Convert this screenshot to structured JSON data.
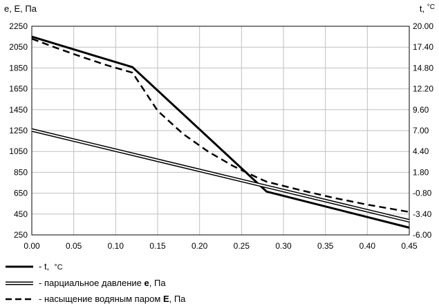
{
  "chart_data": {
    "type": "line",
    "title": "",
    "ylabel_left": "e, E, Па",
    "ylabel_right_prefix": "t, ",
    "ylabel_right_unit": "°C",
    "xlabel": "",
    "x_ticks": [
      "0.00",
      "0.05",
      "0.10",
      "0.15",
      "0.20",
      "0.25",
      "0.30",
      "0.35",
      "0.40",
      "0.45"
    ],
    "y_left_ticks": [
      "250",
      "450",
      "650",
      "850",
      "1050",
      "1250",
      "1450",
      "1650",
      "1850",
      "2050",
      "2250"
    ],
    "y_right_ticks": [
      "-6.00",
      "-3.40",
      "-0.80",
      "1.80",
      "4.40",
      "7.00",
      "9.60",
      "12.20",
      "14.80",
      "17.40",
      "20.00"
    ],
    "xlim": [
      0,
      0.45
    ],
    "ylim_left": [
      250,
      2250
    ],
    "ylim_right": [
      -6.0,
      20.0
    ],
    "grid": true,
    "legend_position": "bottom-left",
    "series": [
      {
        "name": "t",
        "legend_prefix": "- t,  ",
        "legend_unit": "°C",
        "axis": "right",
        "style": "thick",
        "x": [
          0.0,
          0.12,
          0.28,
          0.45
        ],
        "y": [
          18.7,
          14.9,
          -0.6,
          -5.1
        ]
      },
      {
        "name": "e",
        "legend_prefix": "- парциальное давление ",
        "legend_symbol": "e",
        "legend_suffix": ", Па",
        "axis": "left",
        "style": "double",
        "x": [
          0.0,
          0.45
        ],
        "y": [
          1255,
          385
        ]
      },
      {
        "name": "E",
        "legend_prefix": "- насыщение водяным паром ",
        "legend_symbol": "E",
        "legend_suffix": ", Па",
        "axis": "left",
        "style": "dashed",
        "x": [
          0.0,
          0.03,
          0.06,
          0.09,
          0.12,
          0.15,
          0.18,
          0.21,
          0.24,
          0.27,
          0.28,
          0.32,
          0.36,
          0.4,
          0.45
        ],
        "y": [
          2130,
          2040,
          1955,
          1875,
          1805,
          1440,
          1220,
          1050,
          910,
          795,
          760,
          680,
          605,
          540,
          470
        ]
      }
    ]
  }
}
